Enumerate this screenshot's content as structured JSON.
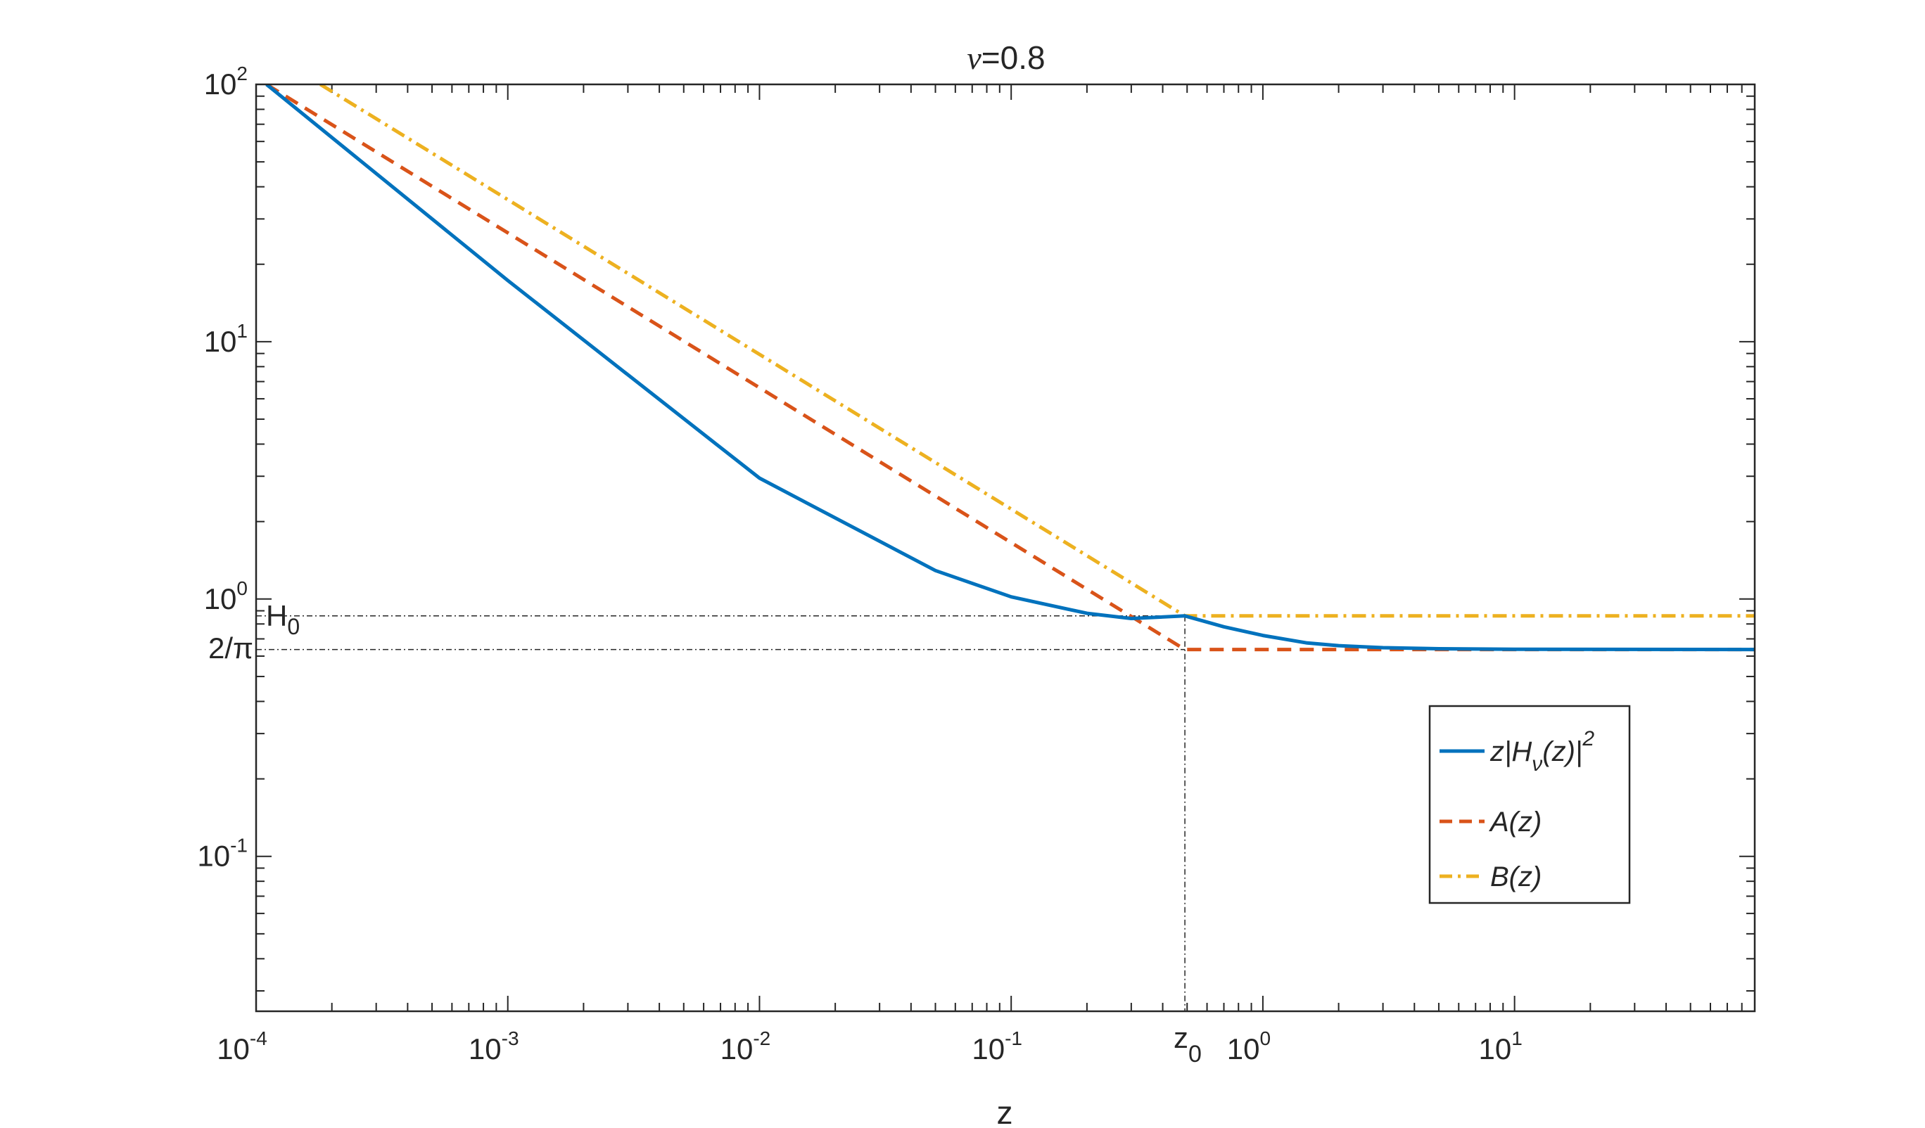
{
  "chart_data": {
    "type": "line",
    "title_symbol": "ν",
    "title_value": "=0.8",
    "xlabel": "z",
    "ylabel": "",
    "x_scale": "log",
    "y_scale": "log",
    "xlim": [
      0.0001,
      90
    ],
    "ylim": [
      0.025,
      100
    ],
    "grid": false,
    "legend_position": "bottom-right",
    "nu": 0.8,
    "x_ticks": [
      {
        "base": "10",
        "exp": "-4",
        "value": 0.0001
      },
      {
        "base": "10",
        "exp": "-3",
        "value": 0.001
      },
      {
        "base": "10",
        "exp": "-2",
        "value": 0.01
      },
      {
        "base": "10",
        "exp": "-1",
        "value": 0.1
      },
      {
        "base": "10",
        "exp": "0",
        "value": 1
      },
      {
        "base": "10",
        "exp": "1",
        "value": 10
      }
    ],
    "y_ticks": [
      {
        "base": "10",
        "exp": "2",
        "value": 100
      },
      {
        "base": "10",
        "exp": "1",
        "value": 10
      },
      {
        "base": "10",
        "exp": "0",
        "value": 1
      },
      {
        "base": "10",
        "exp": "-1",
        "value": 0.1
      }
    ],
    "annotations": {
      "h0_label": "H",
      "h0_sub": "0",
      "h0_value": 0.86,
      "two_over_pi_label": "2/π",
      "two_over_pi_value": 0.6366,
      "z0_label": "z",
      "z0_sub": "0",
      "z0_value": 0.49
    },
    "legend": {
      "s1_a": "z|H",
      "s1_sub": "ν",
      "s1_b": "(z)|",
      "s1_sup": "2",
      "s2": "A(z)",
      "s3": "B(z)"
    },
    "series": [
      {
        "key": "s1",
        "color": "#0072BD",
        "style": "solid",
        "x": [
          0.00011,
          0.001,
          0.01,
          0.05,
          0.1,
          0.2,
          0.3,
          0.49,
          0.7,
          1,
          1.5,
          2,
          3,
          5,
          10,
          90
        ],
        "y": [
          100,
          17.3,
          2.95,
          1.29,
          1.02,
          0.88,
          0.84,
          0.86,
          0.78,
          0.722,
          0.675,
          0.659,
          0.647,
          0.641,
          0.638,
          0.6366
        ]
      },
      {
        "key": "s2",
        "color": "#D95319",
        "style": "dashed",
        "x": [
          0.00011,
          0.49,
          0.49,
          90
        ],
        "y": [
          100,
          0.6366,
          0.6366,
          0.6366
        ]
      },
      {
        "key": "s3",
        "color": "#EDB120",
        "style": "dashdot",
        "x": [
          0.00018,
          0.49,
          0.49,
          90
        ],
        "y": [
          100,
          0.86,
          0.86,
          0.86
        ]
      }
    ]
  }
}
